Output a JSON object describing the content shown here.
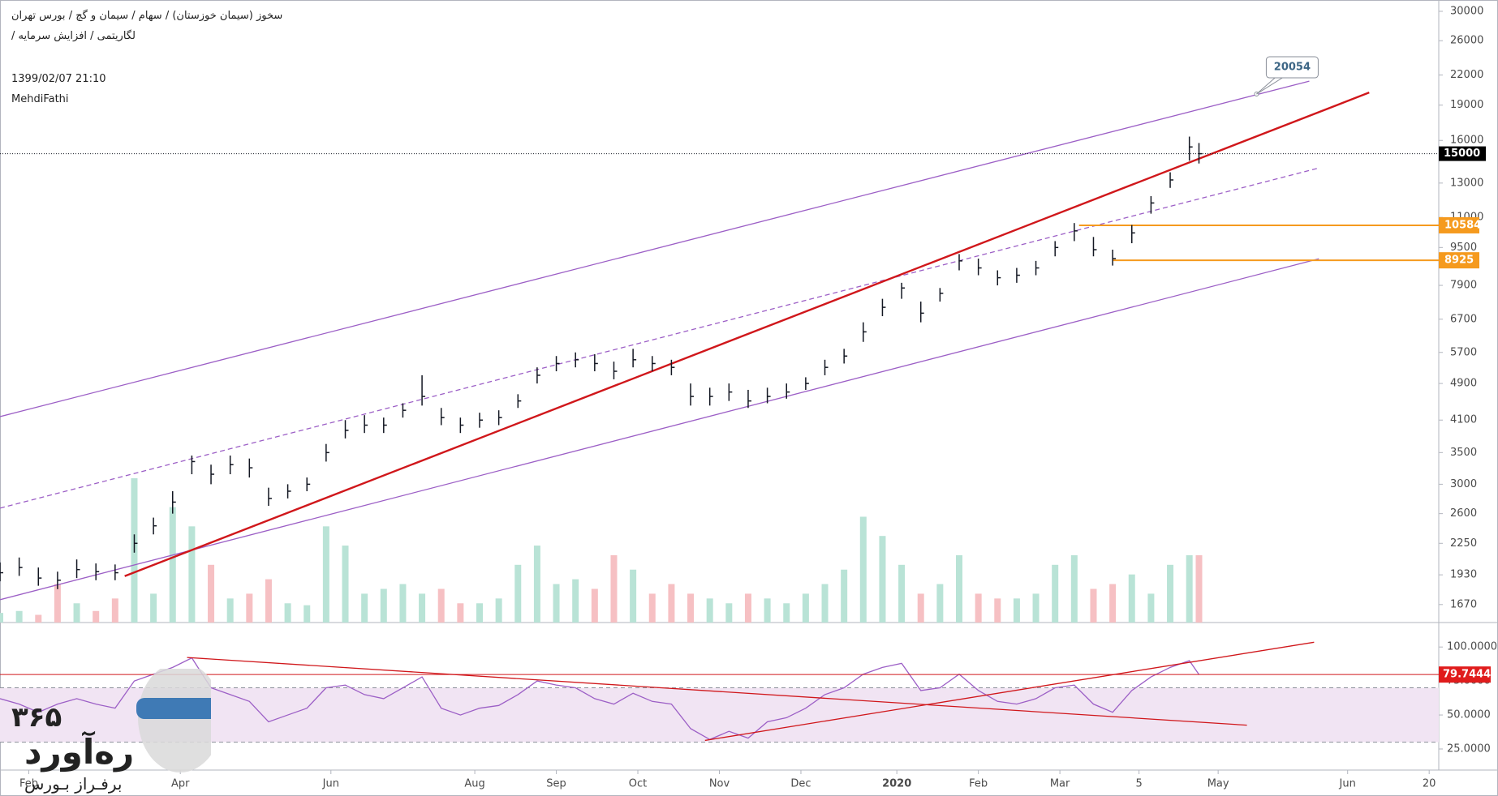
{
  "header": {
    "symbol_line": "سخوز (سیمان خوزستان) / سهام / سیمان و گچ / بورس تهران",
    "tags_line": "لگاریتمی / افزایش سرمایه /",
    "datetime": "1399/02/07 21:10",
    "author": "MehdiFathi"
  },
  "logo": {
    "number": "۳۶۵",
    "name": "رەآورد",
    "slogan": "برفـراز بـورس"
  },
  "chart_data": [
    {
      "type": "ohlc",
      "log_scale": true,
      "xlim": [
        0,
        300
      ],
      "ylim": [
        1530,
        31700
      ],
      "yticks": [
        1670,
        1930,
        2250,
        2600,
        3000,
        3500,
        4100,
        4900,
        5700,
        6700,
        7900,
        9500,
        11000,
        13000,
        16000,
        19000,
        22000,
        26000,
        30000
      ],
      "xticks": [
        {
          "value": 6,
          "label": "Feb"
        },
        {
          "value": 37.6,
          "label": "Apr"
        },
        {
          "value": 69,
          "label": "Jun"
        },
        {
          "value": 99,
          "label": "Aug"
        },
        {
          "value": 116,
          "label": "Sep"
        },
        {
          "value": 133,
          "label": "Oct"
        },
        {
          "value": 150,
          "label": "Nov"
        },
        {
          "value": 167,
          "label": "Dec"
        },
        {
          "value": 187,
          "label": "2020"
        },
        {
          "value": 204,
          "label": "Feb"
        },
        {
          "value": 221,
          "label": "Mar"
        },
        {
          "value": 237.5,
          "label": "5"
        },
        {
          "value": 254,
          "label": "May"
        },
        {
          "value": 281,
          "label": "Jun"
        },
        {
          "value": 298,
          "label": "20"
        }
      ],
      "x": [
        0,
        4,
        8,
        12,
        16,
        20,
        24,
        28,
        32,
        36,
        40,
        44,
        48,
        52,
        56,
        60,
        64,
        68,
        72,
        76,
        80,
        84,
        88,
        92,
        96,
        100,
        104,
        108,
        112,
        116,
        120,
        124,
        128,
        132,
        136,
        140,
        144,
        148,
        152,
        156,
        160,
        164,
        168,
        172,
        176,
        180,
        184,
        188,
        192,
        196,
        200,
        204,
        208,
        212,
        216,
        220,
        224,
        228,
        232,
        236,
        240,
        244,
        248,
        250
      ],
      "high": [
        2050,
        2100,
        2000,
        1960,
        2080,
        2040,
        2030,
        2350,
        2550,
        2900,
        3450,
        3300,
        3450,
        3400,
        2950,
        3000,
        3100,
        3650,
        4100,
        4200,
        4150,
        4450,
        5100,
        4350,
        4150,
        4250,
        4300,
        4650,
        5300,
        5600,
        5700,
        5650,
        5450,
        5800,
        5600,
        5500,
        4900,
        4800,
        4900,
        4750,
        4800,
        4900,
        5050,
        5500,
        5800,
        6600,
        7400,
        8000,
        7300,
        7800,
        9200,
        9000,
        8500,
        8600,
        8900,
        9800,
        10700,
        10000,
        9400,
        10600,
        12200,
        13700,
        16300,
        15800
      ],
      "low": [
        1870,
        1920,
        1830,
        1800,
        1900,
        1880,
        1880,
        2150,
        2350,
        2600,
        3150,
        3000,
        3150,
        3100,
        2700,
        2800,
        2900,
        3350,
        3750,
        3850,
        3850,
        4150,
        4400,
        4000,
        3850,
        3950,
        4000,
        4350,
        4900,
        5200,
        5300,
        5200,
        5000,
        5300,
        5200,
        5100,
        4400,
        4400,
        4500,
        4350,
        4450,
        4550,
        4750,
        5100,
        5400,
        6000,
        6800,
        7400,
        6600,
        7300,
        8500,
        8300,
        7900,
        8000,
        8300,
        9100,
        9800,
        9100,
        8700,
        9700,
        11200,
        12700,
        14500,
        14300
      ],
      "close": [
        1950,
        2000,
        1900,
        1880,
        1980,
        1960,
        1950,
        2250,
        2450,
        2750,
        3350,
        3150,
        3300,
        3250,
        2800,
        2900,
        3000,
        3500,
        3900,
        4000,
        4000,
        4300,
        4600,
        4150,
        4000,
        4100,
        4150,
        4500,
        5100,
        5400,
        5500,
        5400,
        5200,
        5500,
        5400,
        5300,
        4600,
        4600,
        4700,
        4500,
        4600,
        4700,
        4900,
        5300,
        5600,
        6300,
        7100,
        7800,
        6900,
        7600,
        8900,
        8600,
        8200,
        8300,
        8600,
        9500,
        10300,
        9400,
        9000,
        10200,
        11800,
        13200,
        15500,
        15000
      ],
      "color": "#131722",
      "volume": [
        10,
        12,
        8,
        40,
        20,
        12,
        25,
        150,
        30,
        120,
        100,
        60,
        25,
        30,
        45,
        20,
        18,
        100,
        80,
        30,
        35,
        40,
        30,
        35,
        20,
        20,
        25,
        60,
        80,
        40,
        45,
        35,
        70,
        55,
        30,
        40,
        30,
        25,
        20,
        30,
        25,
        20,
        30,
        40,
        55,
        110,
        90,
        60,
        30,
        40,
        70,
        30,
        25,
        25,
        30,
        60,
        70,
        35,
        40,
        50,
        30,
        60,
        70,
        70
      ],
      "up_color": "#b9e3d6",
      "down_color": "#f6c0c3",
      "trend_lines": [
        {
          "x": [
            0,
            273
          ],
          "y": [
            4170,
            21350
          ],
          "color": "#9c5fc6",
          "dashed": false
        },
        {
          "x": [
            0,
            275
          ],
          "y": [
            1710,
            8990
          ],
          "color": "#9c5fc6",
          "dashed": false
        },
        {
          "x": [
            0,
            275
          ],
          "y": [
            2670,
            13990
          ],
          "color": "#9c5fc6",
          "dashed": true
        },
        {
          "x": [
            26,
            285.5
          ],
          "y": [
            1918,
            20200
          ],
          "color": "#d0171b",
          "dashed": false
        }
      ],
      "levels": [
        {
          "x": 225,
          "value": 10584,
          "color": "#f59a1e"
        },
        {
          "x": 232,
          "value": 8925,
          "color": "#f59a1e"
        }
      ],
      "last_price": 15000,
      "callout": {
        "x": 262,
        "value": 20054
      }
    },
    {
      "type": "rsi",
      "xlim": [
        0,
        300
      ],
      "ylim": [
        9.5,
        118
      ],
      "yticks": [
        {
          "value": 25,
          "label": "25.0000"
        },
        {
          "value": 50,
          "label": "50.0000"
        },
        {
          "value": 75,
          "label": "75.0000"
        },
        {
          "value": 100,
          "label": "100.0000"
        }
      ],
      "band": [
        30,
        70
      ],
      "band_color": "#f1e4f3",
      "color": "#9c5fc6",
      "x": [
        0,
        4,
        8,
        12,
        16,
        20,
        24,
        28,
        32,
        36,
        40,
        44,
        48,
        52,
        56,
        60,
        64,
        68,
        72,
        76,
        80,
        84,
        88,
        92,
        96,
        100,
        104,
        108,
        112,
        116,
        120,
        124,
        128,
        132,
        136,
        140,
        144,
        148,
        152,
        156,
        160,
        164,
        168,
        172,
        176,
        180,
        184,
        188,
        192,
        196,
        200,
        204,
        208,
        212,
        216,
        220,
        224,
        228,
        232,
        236,
        240,
        244,
        248,
        250
      ],
      "values": [
        62,
        58,
        52,
        58,
        62,
        58,
        55,
        75,
        80,
        85,
        92,
        70,
        65,
        60,
        45,
        50,
        55,
        70,
        72,
        65,
        62,
        70,
        78,
        55,
        50,
        55,
        57,
        65,
        75,
        72,
        70,
        62,
        58,
        66,
        60,
        58,
        40,
        32,
        38,
        33,
        45,
        48,
        55,
        65,
        70,
        80,
        85,
        88,
        68,
        70,
        80,
        68,
        60,
        58,
        62,
        70,
        72,
        58,
        52,
        68,
        78,
        85,
        90,
        79.7444
      ],
      "last_value": 79.7444,
      "trend_lines": [
        {
          "x": [
            39,
            260
          ],
          "y": [
            92.3,
            42.5
          ],
          "color": "#d0171b"
        },
        {
          "x": [
            147,
            274
          ],
          "y": [
            31.3,
            103.5
          ],
          "color": "#d0171b"
        }
      ]
    }
  ]
}
